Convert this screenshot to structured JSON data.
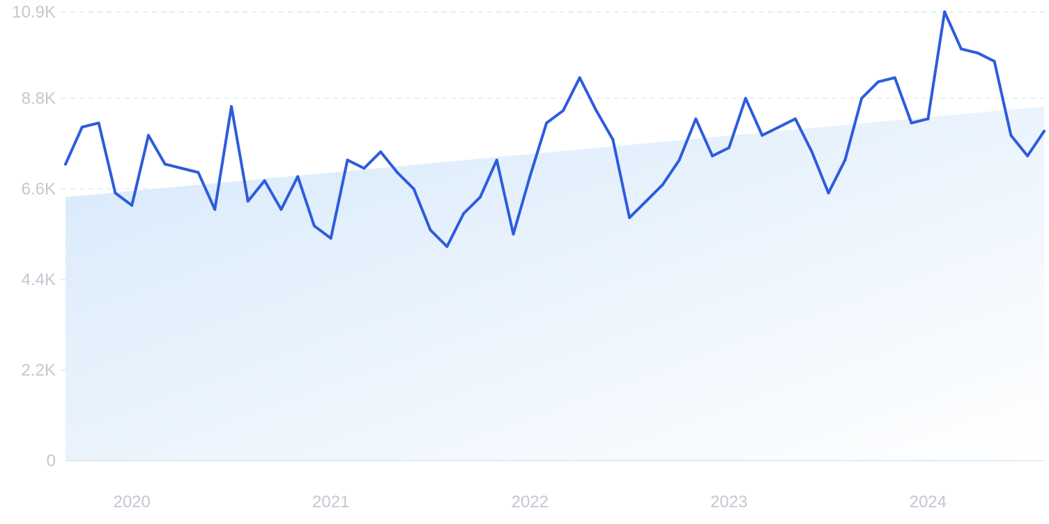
{
  "chart_data": {
    "type": "line",
    "title": "",
    "xlabel": "",
    "ylabel": "",
    "ylim": [
      0,
      10900
    ],
    "xlim": [
      "2019-09",
      "2024-08"
    ],
    "grid": true,
    "legend": "none",
    "y_ticks": [
      {
        "value": 0,
        "label": "0"
      },
      {
        "value": 2200,
        "label": "2.2K"
      },
      {
        "value": 4400,
        "label": "4.4K"
      },
      {
        "value": 6600,
        "label": "6.6K"
      },
      {
        "value": 8800,
        "label": "8.8K"
      },
      {
        "value": 10900,
        "label": "10.9K"
      }
    ],
    "x_ticks": [
      {
        "x": "2020-01",
        "label": "2020"
      },
      {
        "x": "2021-01",
        "label": "2021"
      },
      {
        "x": "2022-01",
        "label": "2022"
      },
      {
        "x": "2023-01",
        "label": "2023"
      },
      {
        "x": "2024-01",
        "label": "2024"
      }
    ],
    "trend": {
      "start": {
        "x": "2019-09",
        "y": 6400
      },
      "end": {
        "x": "2024-08",
        "y": 8600
      }
    },
    "series": [
      {
        "x": [
          "2019-09",
          "2019-10",
          "2019-11",
          "2019-12",
          "2020-01",
          "2020-02",
          "2020-03",
          "2020-04",
          "2020-05",
          "2020-06",
          "2020-07",
          "2020-08",
          "2020-09",
          "2020-10",
          "2020-11",
          "2020-12",
          "2021-01",
          "2021-02",
          "2021-03",
          "2021-04",
          "2021-05",
          "2021-06",
          "2021-07",
          "2021-08",
          "2021-09",
          "2021-10",
          "2021-11",
          "2021-12",
          "2022-01",
          "2022-02",
          "2022-03",
          "2022-04",
          "2022-05",
          "2022-06",
          "2022-07",
          "2022-08",
          "2022-09",
          "2022-10",
          "2022-11",
          "2022-12",
          "2023-01",
          "2023-02",
          "2023-03",
          "2023-04",
          "2023-05",
          "2023-06",
          "2023-07",
          "2023-08",
          "2023-09",
          "2023-10",
          "2023-11",
          "2023-12",
          "2024-01",
          "2024-02",
          "2024-03",
          "2024-04",
          "2024-05",
          "2024-06",
          "2024-07",
          "2024-08"
        ],
        "values": [
          7200,
          8100,
          8200,
          6500,
          6200,
          7900,
          7200,
          7100,
          7000,
          6100,
          8600,
          6300,
          6800,
          6100,
          6900,
          5700,
          5400,
          7300,
          7100,
          7500,
          7000,
          6600,
          5600,
          5200,
          6000,
          6400,
          7300,
          5500,
          6900,
          8200,
          8500,
          9300,
          8500,
          7800,
          5900,
          6300,
          6700,
          7300,
          8300,
          7400,
          7600,
          8800,
          7900,
          8100,
          8300,
          7500,
          6500,
          7300,
          8800,
          9200,
          9300,
          8200,
          8300,
          10900,
          10000,
          9900,
          9700,
          7900,
          7400,
          8000
        ]
      }
    ],
    "colors": {
      "line": "#2d5cdc",
      "area_top": "#d6e8fb",
      "area_bottom": "#ffffff",
      "grid": "#cfe6f2",
      "tick_text": "#c2c8d0"
    }
  }
}
